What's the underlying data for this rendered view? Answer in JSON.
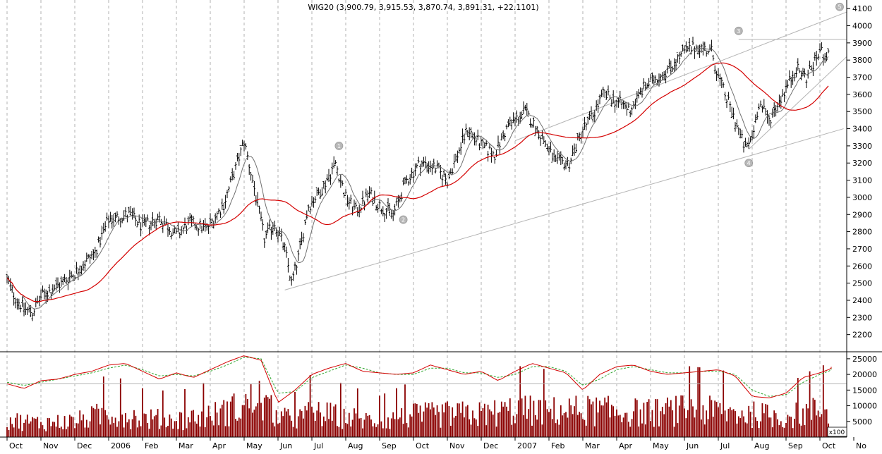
{
  "chart_data": {
    "type": "ohlc",
    "title": "WIG20 (3,900.79, 3,915.53, 3,870.74, 3,891.31, +22.1101)",
    "x_tick_labels": [
      "Oct",
      "Nov",
      "Dec",
      "2006",
      "Feb",
      "Mar",
      "Apr",
      "May",
      "Jun",
      "Jul",
      "Aug",
      "Sep",
      "Oct",
      "Nov",
      "Dec",
      "2007",
      "Feb",
      "Mar",
      "Apr",
      "May",
      "Jun",
      "Jul",
      "Aug",
      "Sep",
      "Oct",
      "No"
    ],
    "x_tick_positions_months": [
      0,
      1,
      2,
      3,
      4,
      5,
      6,
      7,
      8,
      9,
      10,
      11,
      12,
      13,
      14,
      15,
      16,
      17,
      18,
      19,
      20,
      21,
      22,
      23,
      24,
      25
    ],
    "price_axis": {
      "ylim": [
        2100,
        4150
      ],
      "ticks": [
        2200,
        2300,
        2400,
        2500,
        2600,
        2700,
        2800,
        2900,
        3000,
        3100,
        3200,
        3300,
        3400,
        3500,
        3600,
        3700,
        3800,
        3900,
        4000,
        4100
      ]
    },
    "price_keypoints": {
      "months": [
        0,
        0.2,
        0.5,
        0.75,
        1.0,
        1.6,
        2.0,
        2.6,
        3.0,
        3.6,
        4.0,
        4.5,
        5.0,
        5.4,
        5.9,
        6.4,
        6.8,
        7.0,
        7.3,
        7.6,
        7.9,
        8.2,
        8.4,
        8.6,
        8.9,
        9.3,
        9.7,
        10.0,
        10.3,
        10.7,
        11.0,
        11.4,
        11.8,
        12.2,
        12.6,
        13.0,
        13.6,
        14.0,
        14.4,
        14.8,
        15.0,
        15.3,
        15.8,
        16.2,
        16.6,
        17.0,
        17.3,
        17.6,
        18.0,
        18.4,
        18.8,
        19.2,
        19.6,
        20.0,
        20.4,
        20.8,
        21.0,
        21.4,
        21.8,
        22.0,
        22.2,
        22.5,
        22.9,
        23.3,
        23.6,
        24.0,
        24.4,
        24.8,
        25.0
      ],
      "close": [
        2520,
        2430,
        2350,
        2330,
        2420,
        2500,
        2560,
        2680,
        2870,
        2900,
        2830,
        2880,
        2780,
        2850,
        2820,
        2960,
        3200,
        3330,
        3050,
        2760,
        2850,
        2700,
        2500,
        2650,
        2950,
        3050,
        3200,
        3000,
        2920,
        3020,
        2950,
        2900,
        3100,
        3200,
        3180,
        3100,
        3400,
        3300,
        3250,
        3420,
        3450,
        3500,
        3350,
        3200,
        3200,
        3400,
        3480,
        3600,
        3560,
        3510,
        3640,
        3700,
        3760,
        3850,
        3880,
        3850,
        3700,
        3500,
        3280,
        3350,
        3550,
        3450,
        3600,
        3750,
        3700,
        3850,
        3800,
        3900,
        3890
      ]
    },
    "moving_averages": [
      {
        "name": "",
        "color": "#707070"
      },
      {
        "name": "",
        "color": "#d40000"
      }
    ],
    "trend_channel": {
      "upper": [
        [
          15,
          3330
        ],
        [
          25,
          4080
        ]
      ],
      "lower": [
        [
          8.2,
          2460
        ],
        [
          24.7,
          3400
        ]
      ],
      "horizontal": [
        [
          21.6,
          3920
        ],
        [
          25,
          3920
        ]
      ],
      "support": [
        [
          21.9,
          3280
        ],
        [
          24.9,
          3820
        ]
      ]
    },
    "wave_markers": [
      {
        "label": "1",
        "month": 9.8,
        "price": 3300
      },
      {
        "label": "2",
        "month": 11.7,
        "price": 2870
      },
      {
        "label": "3",
        "month": 21.6,
        "price": 3970
      },
      {
        "label": "4",
        "month": 21.9,
        "price": 3200
      },
      {
        "label": "5",
        "month": 25.1,
        "price": 4110
      }
    ],
    "volume_axis": {
      "ylim": [
        0,
        27000
      ],
      "ticks": [
        5000,
        10000,
        15000,
        20000,
        25000
      ],
      "tick_labels": [
        "5000",
        "10000",
        "15000",
        "20000",
        "25000"
      ],
      "unit_label": "x100"
    },
    "volume_reference_line": 17000,
    "volume_indicator": {
      "months": [
        0,
        0.5,
        1.0,
        1.5,
        2.0,
        2.5,
        3.0,
        3.5,
        4.0,
        4.5,
        5.0,
        5.5,
        6.0,
        6.5,
        7.0,
        7.5,
        8.0,
        8.5,
        9.0,
        9.5,
        10.0,
        10.5,
        11.0,
        11.5,
        12.0,
        12.5,
        13.0,
        13.5,
        14.0,
        14.5,
        15.0,
        15.5,
        16.0,
        16.5,
        17.0,
        17.5,
        18.0,
        18.5,
        19.0,
        19.5,
        20.0,
        20.5,
        21.0,
        21.5,
        22.0,
        22.5,
        23.0,
        23.5,
        24.0,
        24.5,
        25.0
      ],
      "red": [
        17000,
        15500,
        18000,
        18500,
        20000,
        21000,
        23000,
        23500,
        21000,
        18500,
        20500,
        19000,
        21500,
        24000,
        26000,
        24500,
        11000,
        15000,
        20000,
        22000,
        23500,
        21000,
        20500,
        20000,
        20500,
        23000,
        21500,
        20000,
        21000,
        18000,
        21000,
        23500,
        22000,
        20500,
        15000,
        20000,
        22500,
        23000,
        21000,
        20000,
        20500,
        21000,
        21500,
        19500,
        13000,
        12500,
        14000,
        19000,
        20500,
        22500,
        22000
      ],
      "green": [
        17500,
        16500,
        17500,
        18500,
        19500,
        20500,
        22000,
        23000,
        21500,
        19500,
        20000,
        19500,
        21000,
        23000,
        25500,
        25000,
        14000,
        14500,
        19000,
        21000,
        23000,
        22000,
        20500,
        20000,
        20000,
        22000,
        22000,
        20500,
        20500,
        19000,
        20000,
        22500,
        22500,
        21000,
        16500,
        18500,
        21500,
        22500,
        21500,
        20500,
        20500,
        21000,
        21000,
        20000,
        15000,
        13000,
        13500,
        17500,
        20000,
        22000,
        22000
      ]
    },
    "volume_profile": {
      "months": [
        0,
        1,
        2,
        3,
        4,
        5,
        6,
        7,
        7.4,
        8,
        8.5,
        9,
        10,
        11,
        12,
        13,
        14,
        15,
        16,
        17,
        18,
        19,
        20,
        21,
        22,
        23,
        24,
        25
      ],
      "level": [
        6000,
        5000,
        5500,
        8500,
        6500,
        6000,
        7500,
        11000,
        14000,
        7000,
        6000,
        8500,
        7000,
        5500,
        7500,
        8000,
        8000,
        9500,
        9000,
        9500,
        9000,
        8500,
        9500,
        9000,
        8000,
        7000,
        9500,
        10000
      ]
    }
  }
}
